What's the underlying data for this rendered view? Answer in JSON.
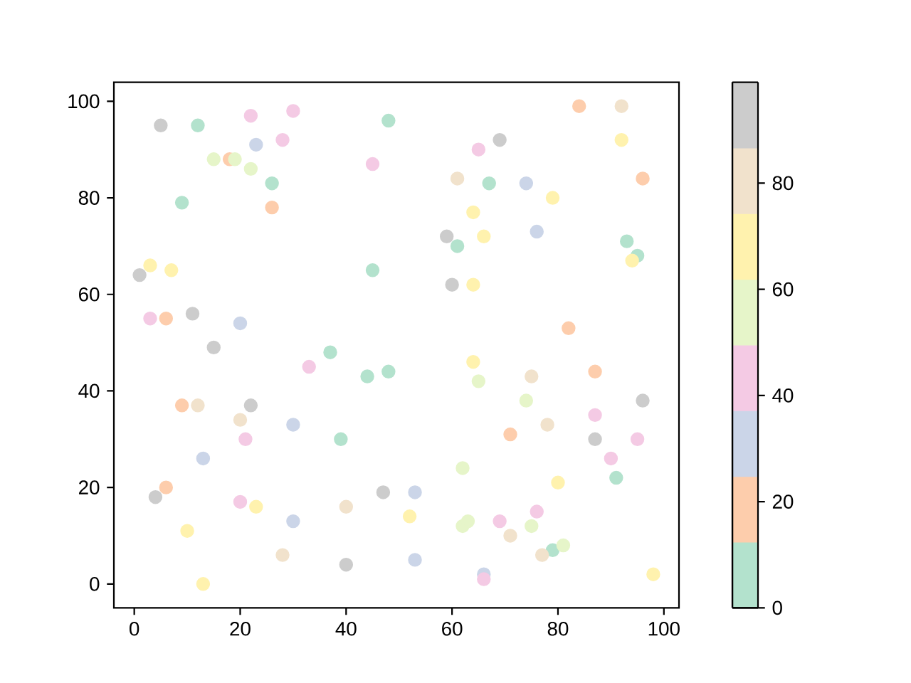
{
  "chart_data": {
    "type": "scatter",
    "marker": "circle",
    "x": [
      5,
      12,
      22,
      30,
      48,
      23,
      28,
      45,
      18,
      15,
      19,
      22,
      26,
      26,
      9,
      1,
      3,
      7,
      45,
      3,
      6,
      11,
      20,
      15,
      37,
      84,
      92,
      69,
      65,
      92,
      61,
      67,
      74,
      96,
      79,
      64,
      59,
      61,
      66,
      76,
      93,
      95,
      94,
      60,
      64,
      82,
      33,
      44,
      48,
      9,
      12,
      22,
      20,
      30,
      21,
      39,
      13,
      6,
      4,
      20,
      23,
      30,
      10,
      40,
      47,
      28,
      40,
      13,
      64,
      65,
      75,
      87,
      74,
      78,
      71,
      96,
      87,
      87,
      95,
      90,
      91,
      80,
      62,
      53,
      52,
      62,
      63,
      69,
      76,
      75,
      71,
      79,
      81,
      77,
      53,
      66,
      66,
      98
    ],
    "values": [
      95,
      95,
      97,
      98,
      96,
      91,
      92,
      87,
      88,
      88,
      88,
      86,
      83,
      78,
      79,
      64,
      66,
      65,
      65,
      55,
      55,
      56,
      54,
      49,
      48,
      99,
      99,
      92,
      90,
      92,
      84,
      83,
      83,
      84,
      80,
      77,
      72,
      70,
      72,
      73,
      71,
      68,
      67,
      62,
      62,
      53,
      45,
      43,
      44,
      37,
      37,
      37,
      34,
      33,
      30,
      30,
      26,
      20,
      18,
      17,
      16,
      13,
      11,
      16,
      19,
      6,
      4,
      0,
      46,
      42,
      43,
      44,
      38,
      33,
      31,
      38,
      35,
      30,
      30,
      26,
      22,
      21,
      24,
      19,
      14,
      12,
      13,
      13,
      15,
      12,
      10,
      7,
      8,
      6,
      5,
      2,
      1,
      2
    ],
    "colors": [
      "#cccccc",
      "#b3e2cd",
      "#f4cae4",
      "#f4cae4",
      "#b3e2cd",
      "#cbd5e8",
      "#f4cae4",
      "#f4cae4",
      "#fdcdac",
      "#e6f5c9",
      "#e6f5c9",
      "#e6f5c9",
      "#b3e2cd",
      "#fdcdac",
      "#b3e2cd",
      "#cccccc",
      "#fff2ae",
      "#fff2ae",
      "#b3e2cd",
      "#f4cae4",
      "#fdcdac",
      "#cccccc",
      "#cbd5e8",
      "#cccccc",
      "#b3e2cd",
      "#fdcdac",
      "#f1e2cc",
      "#cccccc",
      "#f4cae4",
      "#fff2ae",
      "#f1e2cc",
      "#b3e2cd",
      "#cbd5e8",
      "#fdcdac",
      "#fff2ae",
      "#fff2ae",
      "#cccccc",
      "#b3e2cd",
      "#fff2ae",
      "#cbd5e8",
      "#b3e2cd",
      "#b3e2cd",
      "#fff2ae",
      "#cccccc",
      "#fff2ae",
      "#fdcdac",
      "#f4cae4",
      "#b3e2cd",
      "#b3e2cd",
      "#fdcdac",
      "#f1e2cc",
      "#cccccc",
      "#f1e2cc",
      "#cbd5e8",
      "#f4cae4",
      "#b3e2cd",
      "#cbd5e8",
      "#fdcdac",
      "#cccccc",
      "#f4cae4",
      "#fff2ae",
      "#cbd5e8",
      "#fff2ae",
      "#f1e2cc",
      "#cccccc",
      "#f1e2cc",
      "#cccccc",
      "#fff2ae",
      "#fff2ae",
      "#e6f5c9",
      "#f1e2cc",
      "#fdcdac",
      "#e6f5c9",
      "#f1e2cc",
      "#fdcdac",
      "#cccccc",
      "#f4cae4",
      "#cccccc",
      "#f4cae4",
      "#f4cae4",
      "#b3e2cd",
      "#fff2ae",
      "#e6f5c9",
      "#cbd5e8",
      "#fff2ae",
      "#e6f5c9",
      "#e6f5c9",
      "#f4cae4",
      "#f4cae4",
      "#e6f5c9",
      "#f1e2cc",
      "#b3e2cd",
      "#e6f5c9",
      "#f1e2cc",
      "#cbd5e8",
      "#cbd5e8",
      "#f4cae4",
      "#fff2ae"
    ],
    "clim": [
      0,
      99
    ],
    "cticks": [
      0,
      20,
      40,
      60,
      80
    ],
    "xlim": [
      -3.85,
      102.85
    ],
    "ylim": [
      -4.95,
      103.95
    ],
    "xticks": [
      0,
      20,
      40,
      60,
      80,
      100
    ],
    "yticks": [
      0,
      20,
      40,
      60,
      80,
      100
    ]
  }
}
